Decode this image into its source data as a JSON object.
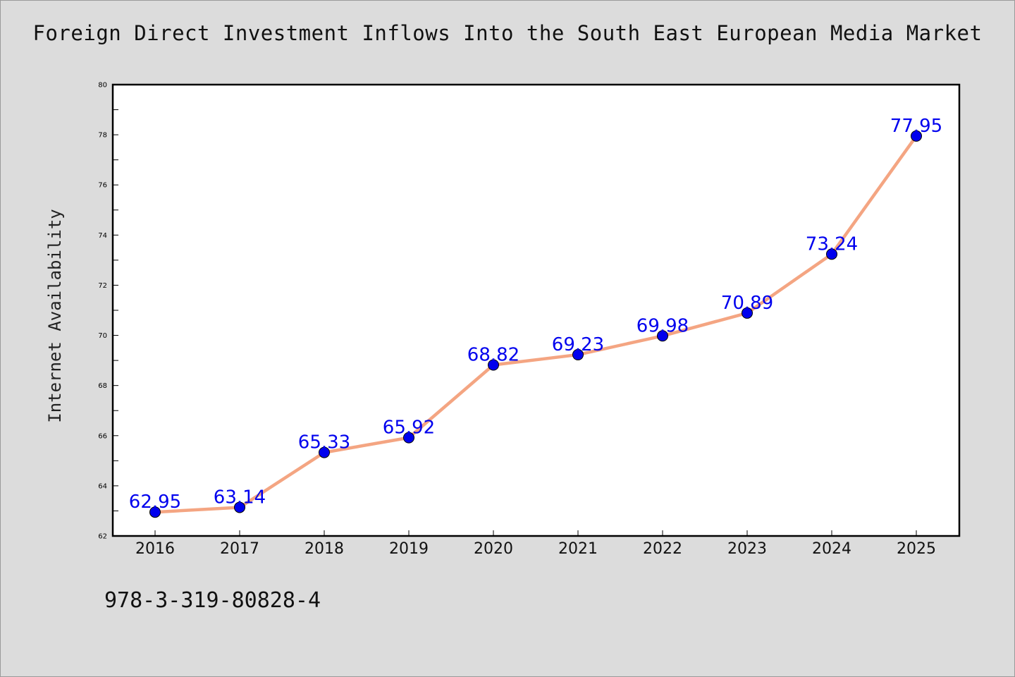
{
  "chart_data": {
    "type": "line",
    "title": "Foreign Direct Investment Inflows Into the South East European Media Market",
    "xlabel": "",
    "ylabel": "Internet Availability",
    "categories": [
      "2016",
      "2017",
      "2018",
      "2019",
      "2020",
      "2021",
      "2022",
      "2023",
      "2024",
      "2025"
    ],
    "series": [
      {
        "values": [
          62.95,
          63.14,
          65.33,
          65.92,
          68.82,
          69.23,
          69.98,
          70.89,
          73.24,
          77.95
        ],
        "data_labels": [
          "62.95",
          "63.14",
          "65.33",
          "65.92",
          "68.82",
          "69.23",
          "69.98",
          "70.89",
          "73.24",
          "77.95"
        ]
      }
    ],
    "ylim": [
      62,
      80
    ],
    "y_ticks": [
      62,
      64,
      66,
      68,
      70,
      72,
      74,
      76,
      78,
      80
    ],
    "y_tick_labels": [
      "62",
      "64",
      "66",
      "68",
      "70",
      "72",
      "74",
      "76",
      "78",
      "80"
    ],
    "grid": false,
    "legend": "none",
    "colors": {
      "line": "#f4a582",
      "marker": "#0000ee",
      "label": "#0000ee",
      "plot_bg": "#ffffff",
      "page_bg": "#dcdcdc"
    }
  },
  "footer": {
    "code": "978-3-319-80828-4"
  }
}
